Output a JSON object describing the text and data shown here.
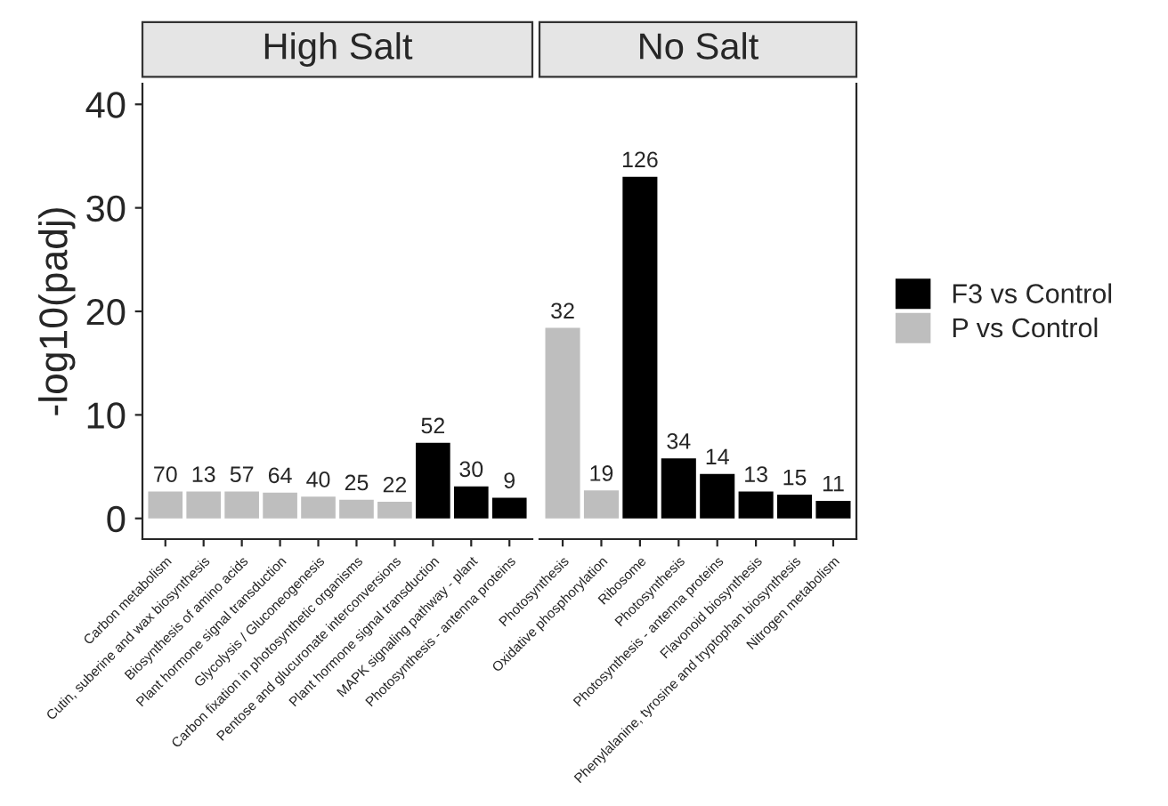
{
  "chart_data": [
    {
      "type": "bar",
      "title": "High Salt",
      "ylabel": "-log10(padj)",
      "categories": [
        "Carbon metabolism",
        "Cutin, suberine and wax biosynthesis",
        "Biosynthesis of amino acids",
        "Plant hormone signal transduction",
        "Glycolysis / Gluconeogenesis",
        "Carbon fixation in photosynthetic organisms",
        "Pentose and glucuronate interconversions",
        "Plant hormone signal transduction",
        "MAPK signaling pathway - plant",
        "Photosynthesis - antenna proteins"
      ],
      "ylim": [
        -2,
        42
      ],
      "yticks": [
        0,
        10,
        20,
        30,
        40
      ],
      "grid": false,
      "legend": false,
      "series": [
        {
          "color": "#000000",
          "values": [
            null,
            null,
            null,
            null,
            null,
            null,
            null,
            7.3,
            3.1,
            2.0
          ]
        },
        {
          "color": "#bebebe",
          "values": [
            2.6,
            2.6,
            2.6,
            2.5,
            2.1,
            1.8,
            1.6,
            null,
            null,
            null
          ]
        }
      ],
      "annotations": [
        {
          "text": "70",
          "x": "Carbon metabolism",
          "y": 2.6
        },
        {
          "text": "13",
          "x": "Cutin, suberine and wax biosynthesis",
          "y": 2.6
        },
        {
          "text": "57",
          "x": "Biosynthesis of amino acids",
          "y": 2.6
        },
        {
          "text": "64",
          "x": "Plant hormone signal transduction",
          "y": 2.5
        },
        {
          "text": "40",
          "x": "Glycolysis / Gluconeogenesis",
          "y": 2.1
        },
        {
          "text": "25",
          "x": "Carbon fixation in photosynthetic organisms",
          "y": 1.8
        },
        {
          "text": "22",
          "x": "Pentose and glucuronate interconversions",
          "y": 1.6
        },
        "52",
        {
          "text": "30",
          "x": "MAPK signaling pathway - plant",
          "y": 3.1
        },
        {
          "text": "9",
          "x": "Photosynthesis - antenna proteins",
          "y": 2.0
        }
      ]
    },
    {
      "type": "bar",
      "title": "No Salt",
      "categories": [
        "Photosynthesis",
        "Oxidative phosphorylation",
        "Ribosome",
        "Photosynthesis",
        "Photosynthesis - antenna proteins",
        "Flavonoid biosynthesis",
        "Phenylalanine, tyrosine and tryptophan biosynthesis",
        "Nitrogen metabolism"
      ],
      "ylim": [
        -2,
        42
      ],
      "yticks": [
        0,
        10,
        20,
        30,
        40
      ],
      "tick_labels": "x",
      "grid": false,
      "legend": "right",
      "series": [
        {
          "name": "F3 vs Control",
          "color": "#000000",
          "values": [
            null,
            null,
            33.0,
            5.8,
            4.3,
            2.6,
            2.3,
            1.7
          ]
        },
        {
          "name": "P vs Control",
          "color": "#bebebe",
          "values": [
            18.4,
            2.7,
            null,
            null,
            null,
            null,
            null,
            null
          ]
        }
      ],
      "annotations": [
        {
          "text": "32",
          "x": "Photosynthesis",
          "y": 18.4
        },
        {
          "text": "19",
          "x": "Oxidative phosphorylation",
          "y": 2.7
        },
        {
          "text": "126",
          "x": "Ribosome",
          "y": 33.0
        },
        "34",
        {
          "text": "14",
          "x": "Photosynthesis - antenna proteins",
          "y": 4.3
        },
        {
          "text": "13",
          "x": "Flavonoid biosynthesis",
          "y": 2.6
        },
        {
          "text": "15",
          "x": "Phenylalanine, tyrosine and tryptophan biosynthesis",
          "y": 2.3
        },
        {
          "text": "11",
          "x": "Nitrogen metabolism",
          "y": 1.7
        }
      ]
    }
  ]
}
